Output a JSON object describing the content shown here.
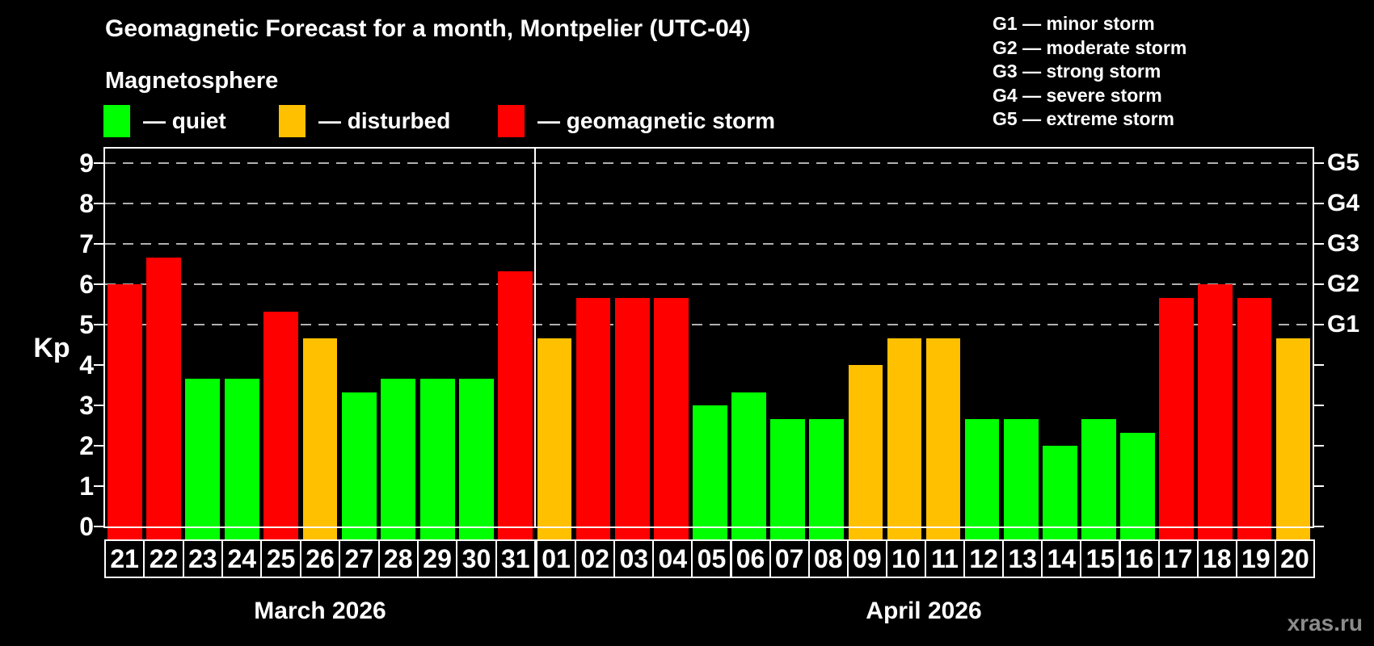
{
  "header": {
    "title": "Geomagnetic Forecast for a month, Montpelier (UTC-04)",
    "subtitle": "Magnetosphere"
  },
  "legend": {
    "items": [
      {
        "key": "quiet",
        "label": "— quiet",
        "color": "#00ff00"
      },
      {
        "key": "disturbed",
        "label": "— disturbed",
        "color": "#ffc000"
      },
      {
        "key": "storm",
        "label": "— geomagnetic storm",
        "color": "#ff0000"
      }
    ]
  },
  "storm_scale_legend": {
    "items": [
      "G1 — minor storm",
      "G2 — moderate storm",
      "G3 — strong storm",
      "G4 — severe storm",
      "G5 — extreme storm"
    ]
  },
  "watermark": "xras.ru",
  "chart_data": {
    "type": "bar",
    "ylabel": "Kp",
    "ylim": [
      0,
      9.36
    ],
    "yticks": [
      0,
      1,
      2,
      3,
      4,
      5,
      6,
      7,
      8,
      9
    ],
    "grid_levels": [
      5,
      6,
      7,
      8,
      9
    ],
    "grid_color": "#b0b0b0",
    "axis_color": "#ffffff",
    "right_axis_labels": [
      {
        "label": "G1",
        "kp": 5
      },
      {
        "label": "G2",
        "kp": 6
      },
      {
        "label": "G3",
        "kp": 7
      },
      {
        "label": "G4",
        "kp": 8
      },
      {
        "label": "G5",
        "kp": 9
      }
    ],
    "level_colors": {
      "quiet": "#00ff00",
      "disturbed": "#ffc000",
      "storm": "#ff0000"
    },
    "months": [
      {
        "label": "March 2026",
        "days": [
          {
            "day": "21",
            "kp": 6.0,
            "level": "storm"
          },
          {
            "day": "22",
            "kp": 6.67,
            "level": "storm"
          },
          {
            "day": "23",
            "kp": 3.67,
            "level": "quiet"
          },
          {
            "day": "24",
            "kp": 3.67,
            "level": "quiet"
          },
          {
            "day": "25",
            "kp": 5.33,
            "level": "storm"
          },
          {
            "day": "26",
            "kp": 4.67,
            "level": "disturbed"
          },
          {
            "day": "27",
            "kp": 3.33,
            "level": "quiet"
          },
          {
            "day": "28",
            "kp": 3.67,
            "level": "quiet"
          },
          {
            "day": "29",
            "kp": 3.67,
            "level": "quiet"
          },
          {
            "day": "30",
            "kp": 3.67,
            "level": "quiet"
          },
          {
            "day": "31",
            "kp": 6.33,
            "level": "storm"
          }
        ]
      },
      {
        "label": "April 2026",
        "days": [
          {
            "day": "01",
            "kp": 4.67,
            "level": "disturbed"
          },
          {
            "day": "02",
            "kp": 5.67,
            "level": "storm"
          },
          {
            "day": "03",
            "kp": 5.67,
            "level": "storm"
          },
          {
            "day": "04",
            "kp": 5.67,
            "level": "storm"
          },
          {
            "day": "05",
            "kp": 3.0,
            "level": "quiet"
          },
          {
            "day": "06",
            "kp": 3.33,
            "level": "quiet"
          },
          {
            "day": "07",
            "kp": 2.67,
            "level": "quiet"
          },
          {
            "day": "08",
            "kp": 2.67,
            "level": "quiet"
          },
          {
            "day": "09",
            "kp": 4.0,
            "level": "disturbed"
          },
          {
            "day": "10",
            "kp": 4.67,
            "level": "disturbed"
          },
          {
            "day": "11",
            "kp": 4.67,
            "level": "disturbed"
          },
          {
            "day": "12",
            "kp": 2.67,
            "level": "quiet"
          },
          {
            "day": "13",
            "kp": 2.67,
            "level": "quiet"
          },
          {
            "day": "14",
            "kp": 2.0,
            "level": "quiet"
          },
          {
            "day": "15",
            "kp": 2.67,
            "level": "quiet"
          },
          {
            "day": "16",
            "kp": 2.33,
            "level": "quiet"
          },
          {
            "day": "17",
            "kp": 5.67,
            "level": "storm"
          },
          {
            "day": "18",
            "kp": 6.0,
            "level": "storm"
          },
          {
            "day": "19",
            "kp": 5.67,
            "level": "storm"
          },
          {
            "day": "20",
            "kp": 4.67,
            "level": "disturbed"
          }
        ]
      }
    ]
  }
}
